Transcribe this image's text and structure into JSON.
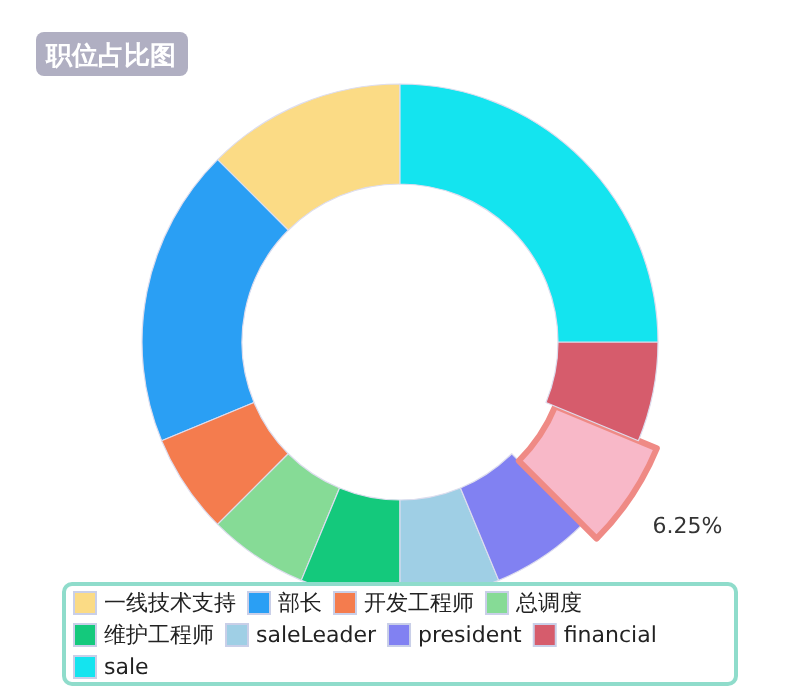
{
  "chart_data": {
    "type": "donut",
    "title": "职位占比图",
    "categories": [
      "一线技术支持",
      "部长",
      "开发工程师",
      "总调度",
      "维护工程师",
      "saleLeader",
      "president",
      null,
      "financial",
      "sale"
    ],
    "values": [
      12.5,
      18.75,
      6.25,
      6.25,
      6.25,
      6.25,
      6.25,
      6.25,
      6.25,
      25
    ],
    "colors": [
      "#fbdb85",
      "#2a9ff4",
      "#f47c4e",
      "#86db96",
      "#14c97c",
      "#9fcfe5",
      "#8181f2",
      "#f8b8c8",
      "#d65c6c",
      "#14e4ef"
    ],
    "value_labels": [
      null,
      null,
      null,
      null,
      null,
      null,
      null,
      "6.25%",
      null,
      null
    ],
    "legend": "bottom"
  }
}
